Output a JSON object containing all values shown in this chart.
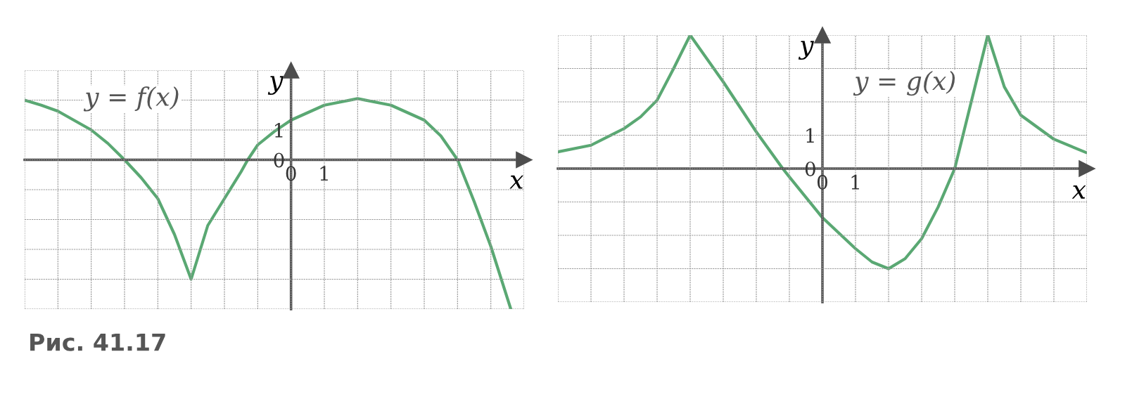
{
  "chart_data": [
    {
      "type": "line",
      "xlabel": "x",
      "ylabel": "y",
      "annotations": [
        "y = f(x)",
        "Рис. 41.17"
      ],
      "xlim": [
        -8,
        7
      ],
      "ylim": [
        -5,
        3
      ],
      "grid": true,
      "xticks": [
        {
          "value": -8,
          "label": null
        },
        {
          "value": -7,
          "label": null
        },
        {
          "value": -6,
          "label": null
        },
        {
          "value": -5,
          "label": null
        },
        {
          "value": -4,
          "label": null
        },
        {
          "value": -3,
          "label": null
        },
        {
          "value": -2,
          "label": null
        },
        {
          "value": -1,
          "label": null
        },
        0,
        1,
        {
          "value": 2,
          "label": null
        },
        {
          "value": 3,
          "label": null
        },
        {
          "value": 4,
          "label": null
        },
        {
          "value": 5,
          "label": null
        },
        {
          "value": 6,
          "label": null
        },
        {
          "value": 7,
          "label": null
        }
      ],
      "yticks": [
        {
          "value": -5,
          "label": null
        },
        {
          "value": -4,
          "label": null
        },
        {
          "value": -3,
          "label": null
        },
        {
          "value": -2,
          "label": null
        },
        {
          "value": -1,
          "label": null
        },
        0,
        1,
        {
          "value": 2,
          "label": null
        },
        {
          "value": 3,
          "label": null
        }
      ],
      "series": [
        {
          "color": "#5aa873",
          "x": [
            -8,
            -7.5,
            -7,
            -6,
            -5.5,
            -5,
            -4.5,
            -4,
            -3.5,
            -3,
            -2.5,
            -2,
            -1.5,
            -1.3,
            -1,
            -0.5,
            0,
            1,
            2,
            3,
            4,
            4.5,
            5,
            5.5,
            6,
            6.6
          ],
          "values": [
            2.0,
            1.83,
            1.63,
            1.0,
            0.55,
            0,
            -0.6,
            -1.3,
            -2.5,
            -4,
            -2.2,
            -1.3,
            -0.4,
            0,
            0.5,
            0.95,
            1.33,
            1.83,
            2.05,
            1.83,
            1.33,
            0.8,
            0,
            -1.4,
            -2.9,
            -5
          ]
        }
      ]
    },
    {
      "type": "line",
      "xlabel": "x",
      "ylabel": "y",
      "annotations": [
        "y = g(x)"
      ],
      "xlim": [
        -8,
        8
      ],
      "ylim": [
        -4,
        4
      ],
      "grid": true,
      "xticks": [
        {
          "value": -8,
          "label": null
        },
        {
          "value": -7,
          "label": null
        },
        {
          "value": -6,
          "label": null
        },
        {
          "value": -5,
          "label": null
        },
        {
          "value": -4,
          "label": null
        },
        {
          "value": -3,
          "label": null
        },
        {
          "value": -2,
          "label": null
        },
        {
          "value": -1,
          "label": null
        },
        0,
        1,
        {
          "value": 2,
          "label": null
        },
        {
          "value": 3,
          "label": null
        },
        {
          "value": 4,
          "label": null
        },
        {
          "value": 5,
          "label": null
        },
        {
          "value": 6,
          "label": null
        },
        {
          "value": 7,
          "label": null
        },
        {
          "value": 8,
          "label": null
        }
      ],
      "yticks": [
        {
          "value": -4,
          "label": null
        },
        {
          "value": -3,
          "label": null
        },
        {
          "value": -2,
          "label": null
        },
        {
          "value": -1,
          "label": null
        },
        0,
        1,
        {
          "value": 2,
          "label": null
        },
        {
          "value": 3,
          "label": null
        },
        {
          "value": 4,
          "label": null
        }
      ],
      "series": [
        {
          "color": "#5aa873",
          "x": [
            -8,
            -7,
            -6.5,
            -6,
            -5.5,
            -5,
            -4.5,
            -4,
            -3,
            -2,
            -1.2,
            -1,
            0,
            1,
            1.5,
            2,
            2.5,
            3,
            3.5,
            4,
            4.5,
            5,
            5.5,
            6,
            7,
            8
          ],
          "values": [
            0.5,
            0.7,
            0.95,
            1.2,
            1.55,
            2.05,
            3,
            4,
            2.6,
            1.1,
            0,
            -0.25,
            -1.47,
            -2.4,
            -2.8,
            -3,
            -2.7,
            -2.1,
            -1.15,
            0,
            2.0,
            4,
            2.45,
            1.6,
            0.88,
            0.47
          ]
        }
      ]
    }
  ]
}
